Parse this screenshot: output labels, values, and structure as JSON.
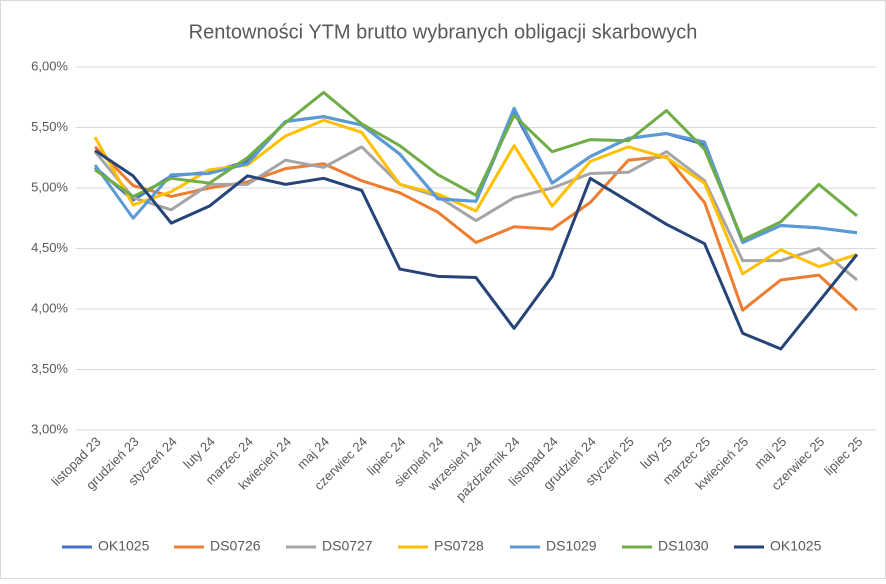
{
  "chart_data": {
    "type": "line",
    "title": "Rentowności YTM brutto wybranych obligacji skarbowych",
    "categories": [
      "listopad 23",
      "grudzień 23",
      "styczeń 24",
      "luty 24",
      "marzec 24",
      "kwiecień 24",
      "maj 24",
      "czerwiec 24",
      "lipiec 24",
      "sierpień 24",
      "wrzesień 24",
      "październik 24",
      "listopad 24",
      "grudzień 24",
      "styczeń 25",
      "luty 25",
      "marzec 25",
      "kwiecień 25",
      "maj 25",
      "czerwiec 25",
      "lipiec 25"
    ],
    "series": [
      {
        "name": "OK1025",
        "color": "#4472c4",
        "values": [
          5.17,
          4.9,
          5.1,
          5.13,
          5.22,
          5.55,
          5.59,
          5.52,
          5.28,
          4.91,
          4.89,
          5.63,
          5.04,
          5.26,
          5.41,
          5.45,
          5.36,
          4.55,
          4.69,
          4.67,
          4.63
        ]
      },
      {
        "name": "DS0726",
        "color": "#ed7d31",
        "values": [
          5.34,
          5.02,
          4.93,
          5.0,
          5.05,
          5.16,
          5.2,
          5.06,
          4.96,
          4.8,
          4.55,
          4.68,
          4.66,
          4.88,
          5.23,
          5.26,
          4.88,
          3.99,
          4.24,
          4.28,
          3.99
        ]
      },
      {
        "name": "DS0727",
        "color": "#a5a5a5",
        "values": [
          5.3,
          4.92,
          4.82,
          5.03,
          5.03,
          5.23,
          5.17,
          5.34,
          5.03,
          4.93,
          4.73,
          4.92,
          5.0,
          5.12,
          5.13,
          5.3,
          5.06,
          4.4,
          4.4,
          4.5,
          4.24
        ]
      },
      {
        "name": "PS0728",
        "color": "#ffc000",
        "values": [
          5.42,
          4.86,
          4.97,
          5.15,
          5.19,
          5.43,
          5.56,
          5.46,
          5.03,
          4.95,
          4.81,
          5.35,
          4.85,
          5.22,
          5.34,
          5.25,
          5.04,
          4.29,
          4.49,
          4.35,
          4.45
        ]
      },
      {
        "name": "DS1029",
        "color": "#5b9bd5",
        "values": [
          5.19,
          4.75,
          5.11,
          5.12,
          5.2,
          5.55,
          5.59,
          5.52,
          5.28,
          4.91,
          4.89,
          5.66,
          5.04,
          5.26,
          5.41,
          5.45,
          5.38,
          4.55,
          4.69,
          4.67,
          4.63
        ]
      },
      {
        "name": "DS1030",
        "color": "#70ad47",
        "values": [
          5.15,
          4.93,
          5.08,
          5.04,
          5.25,
          5.54,
          5.79,
          5.53,
          5.35,
          5.11,
          4.94,
          5.6,
          5.3,
          5.4,
          5.39,
          5.64,
          5.32,
          4.57,
          4.72,
          5.03,
          4.77
        ]
      },
      {
        "name": "OK1025",
        "color": "#264478",
        "values": [
          5.31,
          5.1,
          4.71,
          4.85,
          5.1,
          5.03,
          5.08,
          4.98,
          4.33,
          4.27,
          4.26,
          3.84,
          4.27,
          5.08,
          4.89,
          4.7,
          4.54,
          3.8,
          3.67,
          4.06,
          4.45
        ]
      }
    ],
    "ylim": [
      3,
      6
    ],
    "yticks": [
      {
        "value": 3,
        "label": "3,00%"
      },
      {
        "value": 3.5,
        "label": "3,50%"
      },
      {
        "value": 4,
        "label": "4,00%"
      },
      {
        "value": 4.5,
        "label": "4,50%"
      },
      {
        "value": 5,
        "label": "5,00%"
      },
      {
        "value": 5.5,
        "label": "5,50%"
      },
      {
        "value": 6,
        "label": "6,00%"
      }
    ],
    "grid": true,
    "legend": "bottom"
  }
}
